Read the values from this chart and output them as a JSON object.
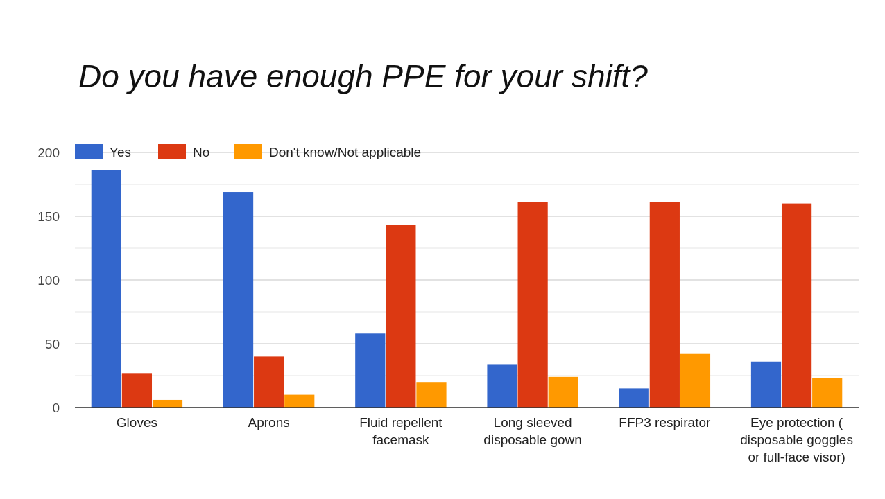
{
  "chart_data": {
    "type": "bar",
    "title": "Do you have enough PPE for your shift?",
    "categories": [
      "Gloves",
      "Aprons",
      "Fluid repellent facemask",
      "Long sleeved disposable gown",
      "FFP3 respirator",
      "Eye protection ( disposable goggles or full-face visor)"
    ],
    "series": [
      {
        "name": "Yes",
        "color": "#3366cc",
        "values": [
          186,
          169,
          58,
          34,
          15,
          36
        ]
      },
      {
        "name": "No",
        "color": "#dc3912",
        "values": [
          27,
          40,
          143,
          161,
          161,
          160
        ]
      },
      {
        "name": "Don't know/Not applicable",
        "color": "#ff9900",
        "values": [
          6,
          10,
          20,
          24,
          42,
          23
        ]
      }
    ],
    "ylim": [
      0,
      200
    ],
    "yticks": [
      0,
      {
        "value": 25,
        "label": null
      },
      50,
      {
        "value": 75,
        "label": null
      },
      100,
      {
        "value": 125,
        "label": null
      },
      150,
      {
        "value": 175,
        "label": null
      },
      200
    ],
    "grid": "y",
    "legend": "top left"
  }
}
